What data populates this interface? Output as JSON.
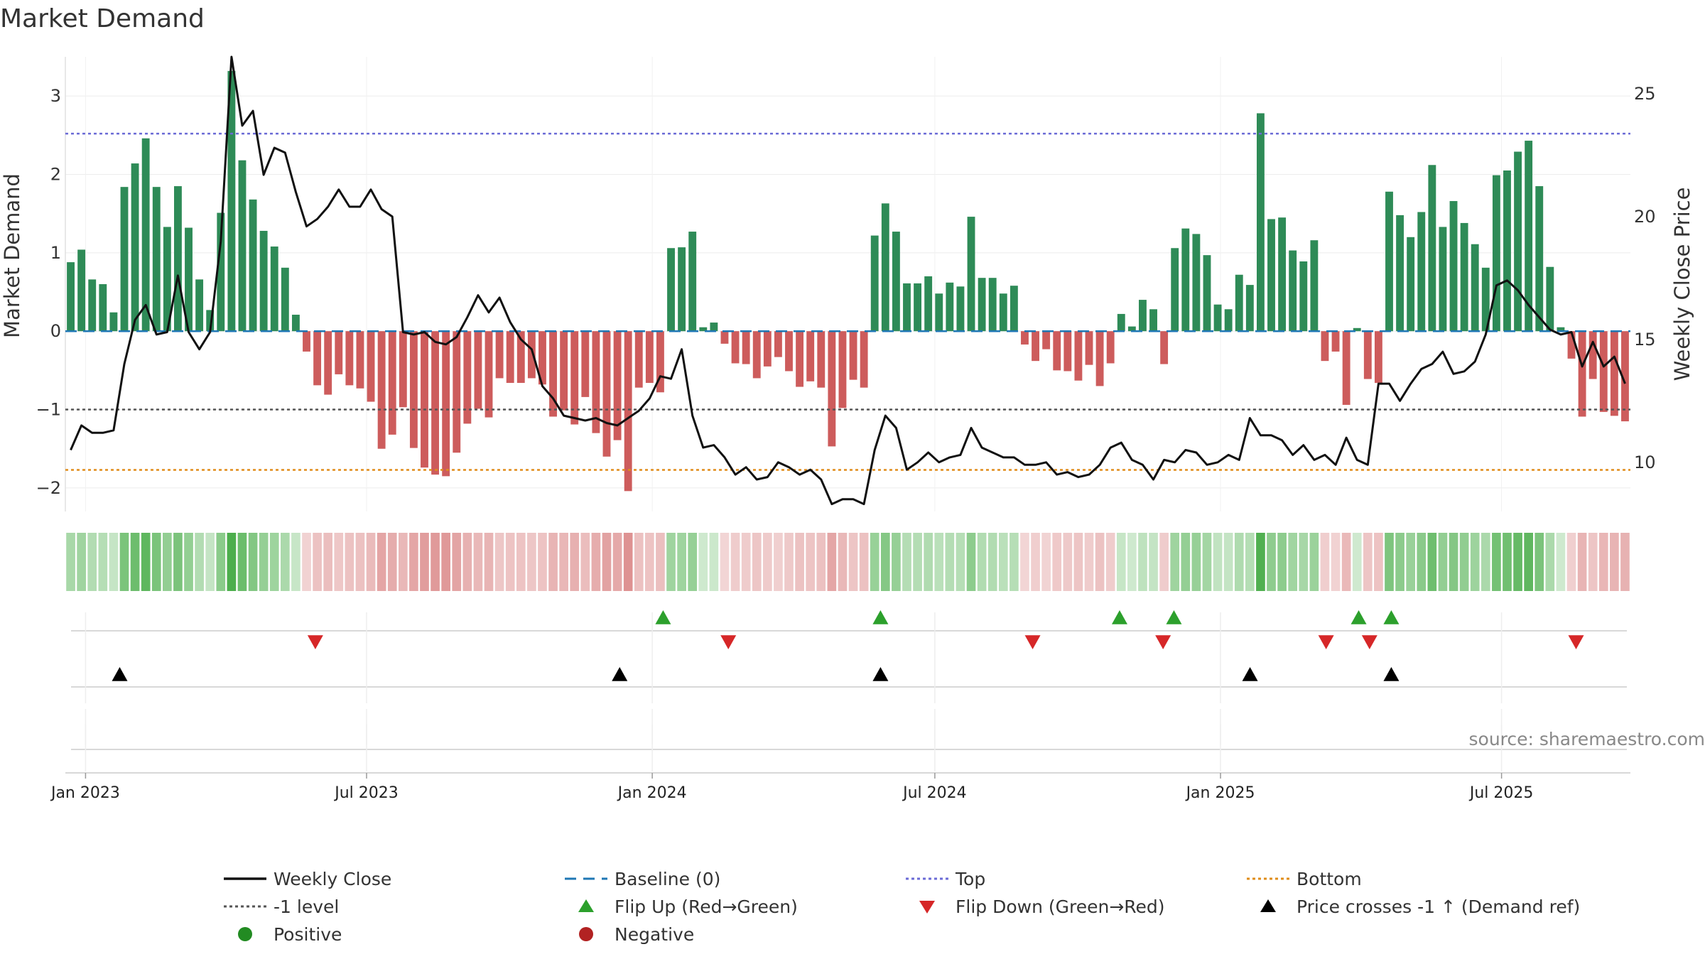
{
  "title": "Market Demand",
  "source_text": "source: sharemaestro.com",
  "colors": {
    "positive": "#2e8b57",
    "negative": "#cd5c5c",
    "price": "#111111",
    "baseline": "#1f77b4",
    "top": "#6b6bd6",
    "minus_one": "#555555",
    "bottom": "#e08c1a",
    "flip_up": "#2ca02c",
    "flip_down": "#d62728",
    "cross": "#000000",
    "positive_dot": "#228b22",
    "negative_dot": "#b22222"
  },
  "chart_data": {
    "type": "bar",
    "title": "Market Demand",
    "ylabel_left": "Market Demand",
    "ylabel_right": "Weekly Close Price",
    "ylim_left": [
      -2.3,
      3.5
    ],
    "ylim_right": [
      8,
      26.5
    ],
    "yticks_left": [
      3,
      2,
      1,
      0,
      -1,
      -2
    ],
    "yticks_left_labels": [
      "3",
      "2",
      "1",
      "0",
      "−1",
      "−2"
    ],
    "yticks_right": [
      25,
      20,
      15,
      10
    ],
    "yticks_right_labels": [
      "25",
      "20",
      "15",
      "10"
    ],
    "x_start": "2022-12-19",
    "x_end": "2025-09-22",
    "xticks": [
      "2023-01-01",
      "2023-07-01",
      "2024-01-01",
      "2024-07-01",
      "2025-01-01",
      "2025-07-01"
    ],
    "xtick_labels": [
      "Jan 2023",
      "Jul 2023",
      "Jan 2024",
      "Jul 2024",
      "Jan 2025",
      "Jul 2025"
    ],
    "top_level": 2.52,
    "bottom_level": -1.77,
    "minus_one_level": -1,
    "baseline_level": 0,
    "demand": [
      0.88,
      1.04,
      0.66,
      0.6,
      0.24,
      1.84,
      2.14,
      2.46,
      1.84,
      1.33,
      1.85,
      1.32,
      0.66,
      0.27,
      1.51,
      3.32,
      2.18,
      1.68,
      1.28,
      1.08,
      0.81,
      0.21,
      -0.26,
      -0.69,
      -0.81,
      -0.55,
      -0.69,
      -0.73,
      -0.9,
      -1.5,
      -1.32,
      -0.97,
      -1.49,
      -1.74,
      -1.83,
      -1.85,
      -1.55,
      -1.18,
      -0.99,
      -1.1,
      -0.6,
      -0.66,
      -0.66,
      -0.6,
      -0.68,
      -1.09,
      -1.01,
      -1.19,
      -0.84,
      -1.3,
      -1.6,
      -1.39,
      -2.04,
      -0.72,
      -0.66,
      -0.78,
      1.06,
      1.07,
      1.27,
      0.05,
      0.11,
      -0.16,
      -0.41,
      -0.42,
      -0.6,
      -0.45,
      -0.33,
      -0.51,
      -0.71,
      -0.64,
      -0.72,
      -1.47,
      -0.98,
      -0.62,
      -0.72,
      1.22,
      1.63,
      1.27,
      0.61,
      0.61,
      0.7,
      0.48,
      0.62,
      0.57,
      1.46,
      0.68,
      0.68,
      0.48,
      0.58,
      -0.17,
      -0.38,
      -0.23,
      -0.5,
      -0.51,
      -0.63,
      -0.43,
      -0.7,
      -0.41,
      0.22,
      0.06,
      0.4,
      0.28,
      -0.42,
      1.06,
      1.31,
      1.24,
      0.97,
      0.34,
      0.28,
      0.72,
      0.59,
      2.78,
      1.43,
      1.45,
      1.03,
      0.89,
      1.16,
      -0.38,
      -0.26,
      -0.94,
      0.04,
      -0.61,
      -0.66,
      1.78,
      1.48,
      1.2,
      1.52,
      2.12,
      1.33,
      1.66,
      1.38,
      1.11,
      0.81,
      1.99,
      2.05,
      2.29,
      2.43,
      1.85,
      0.82,
      0.05,
      -0.35,
      -1.09,
      -0.61,
      -1.03,
      -1.08,
      -1.15
    ],
    "price": [
      10.5,
      11.5,
      11.2,
      11.2,
      11.3,
      14,
      15.8,
      16.4,
      15.2,
      15.3,
      17.6,
      15.3,
      14.6,
      15.3,
      19,
      26.5,
      23.7,
      24.3,
      21.7,
      22.8,
      22.6,
      21,
      19.6,
      19.9,
      20.4,
      21.1,
      20.4,
      20.4,
      21.1,
      20.3,
      20,
      15.3,
      15.2,
      15.3,
      14.9,
      14.8,
      15.1,
      15.9,
      16.8,
      16.1,
      16.7,
      15.7,
      15,
      14.6,
      13.1,
      12.6,
      11.9,
      11.8,
      11.7,
      11.8,
      11.6,
      11.5,
      11.8,
      12.1,
      12.6,
      13.5,
      13.4,
      14.6,
      11.9,
      10.6,
      10.7,
      10.2,
      9.5,
      9.8,
      9.3,
      9.4,
      10,
      9.8,
      9.5,
      9.7,
      9.3,
      8.3,
      8.5,
      8.5,
      8.3,
      10.5,
      11.9,
      11.4,
      9.7,
      10,
      10.4,
      10,
      10.2,
      10.3,
      11.4,
      10.6,
      10.4,
      10.2,
      10.2,
      9.9,
      9.9,
      10,
      9.5,
      9.6,
      9.4,
      9.5,
      9.9,
      10.6,
      10.8,
      10.1,
      9.9,
      9.3,
      10.1,
      10,
      10.5,
      10.4,
      9.9,
      10,
      10.3,
      10.1,
      11.8,
      11.1,
      11.1,
      10.9,
      10.3,
      10.7,
      10.1,
      10.3,
      9.9,
      11,
      10.1,
      9.9,
      13.2,
      13.2,
      12.5,
      13.2,
      13.8,
      14,
      14.5,
      13.6,
      13.7,
      14.1,
      15.2,
      17.2,
      17.4,
      17,
      16.4,
      15.9,
      15.4,
      15.2,
      15.3,
      13.9,
      14.9,
      13.9,
      14.3,
      13.2
    ],
    "flip_up": [
      "2024-01-08",
      "2024-05-27",
      "2024-10-28",
      "2024-12-02",
      "2025-03-31",
      "2025-04-21"
    ],
    "flip_down": [
      "2023-05-29",
      "2024-02-19",
      "2024-09-02",
      "2024-11-25",
      "2025-03-10",
      "2025-04-07",
      "2025-08-18"
    ],
    "price_cross_up": [
      "2023-01-23",
      "2023-12-11",
      "2024-05-27",
      "2025-01-20",
      "2025-04-21"
    ]
  },
  "legend": [
    {
      "label": "Weekly Close",
      "kind": "line-solid",
      "color": "#111111"
    },
    {
      "label": "Baseline (0)",
      "kind": "line-dash",
      "color": "#1f77b4"
    },
    {
      "label": "Top",
      "kind": "line-dot",
      "color": "#6b6bd6"
    },
    {
      "label": "Bottom",
      "kind": "line-dot",
      "color": "#e08c1a"
    },
    {
      "label": "-1 level",
      "kind": "line-dot",
      "color": "#555555"
    },
    {
      "label": "Flip Up (Red→Green)",
      "kind": "tri-up",
      "color": "#2ca02c"
    },
    {
      "label": "Flip Down (Green→Red)",
      "kind": "tri-down",
      "color": "#d62728"
    },
    {
      "label": "Price crosses -1 ↑ (Demand ref)",
      "kind": "tri-up",
      "color": "#000000"
    },
    {
      "label": "Positive",
      "kind": "dot",
      "color": "#228b22"
    },
    {
      "label": "Negative",
      "kind": "dot",
      "color": "#b22222"
    }
  ]
}
